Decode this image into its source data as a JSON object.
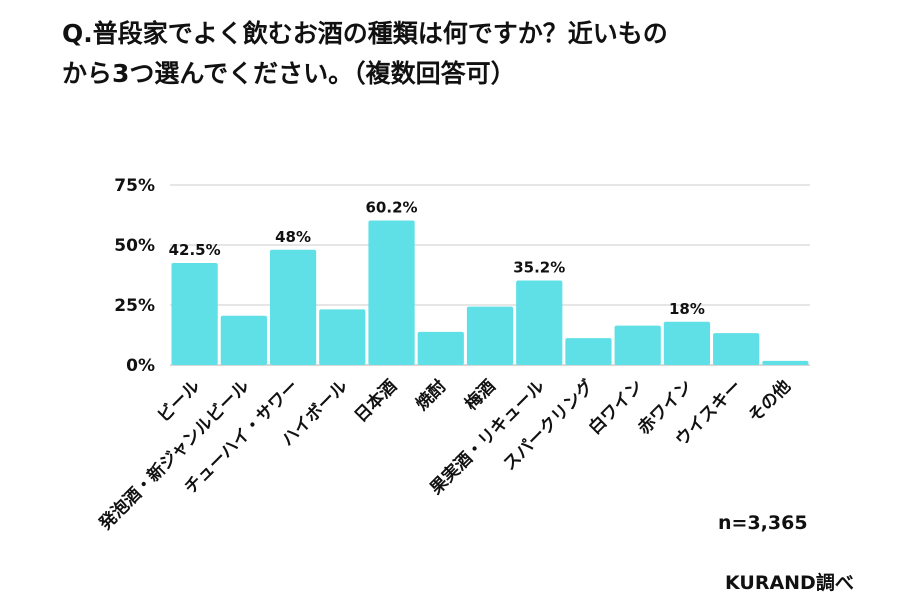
{
  "title_line1": "Q.普段家でよく飲むお酒の種類は何ですか？近いもの",
  "title_line2": "から3つ選んでください。（複数回答可）",
  "sample": "n=3,365",
  "source": "KURAND調べ",
  "colors": {
    "bar": "#5ee0e6",
    "grid": "#dddddd"
  },
  "chart_data": {
    "type": "bar",
    "title": "Q.普段家でよく飲むお酒の種類は何ですか？近いものから3つ選んでください。（複数回答可）",
    "categories": [
      "ビール",
      "発泡酒・新ジャンルビール",
      "チューハイ・サワー",
      "ハイボール",
      "日本酒",
      "焼酎",
      "梅酒",
      "果実酒・リキュール",
      "スパークリング",
      "白ワイン",
      "赤ワイン",
      "ウイスキー",
      "その他"
    ],
    "values": [
      42.5,
      20.5,
      48,
      23.2,
      60.2,
      13.8,
      24.3,
      35.2,
      11.2,
      16.4,
      18,
      13.3,
      1.7
    ],
    "data_labels": [
      "42.5%",
      "",
      "48%",
      "",
      "60.2%",
      "",
      "",
      "35.2%",
      "",
      "",
      "18%",
      "",
      ""
    ],
    "yticks": [
      "0%",
      "25%",
      "50%",
      "75%"
    ],
    "ylim": [
      0,
      75
    ],
    "grid": true
  }
}
